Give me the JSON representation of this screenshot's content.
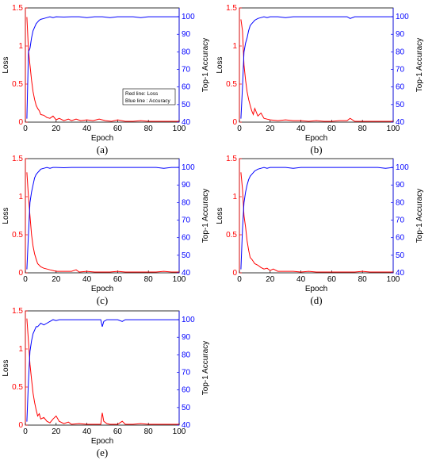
{
  "chart_data": [
    {
      "type": "line",
      "caption": "(a)",
      "xlabel": "Epoch",
      "ylabel_left": "Loss",
      "ylabel_right": "Top-1 Accuracy",
      "xlim": [
        0,
        100
      ],
      "ylim_left": [
        0,
        1.5
      ],
      "ylim_right": [
        40,
        105
      ],
      "x_ticks": [
        "0",
        "20",
        "40",
        "60",
        "80",
        "100"
      ],
      "y_left_ticks": [
        "0",
        "0.5",
        "1",
        "1.5"
      ],
      "y_right_ticks": [
        "40",
        "50",
        "60",
        "70",
        "80",
        "90",
        "100"
      ],
      "legend": [
        "Red line: Loss",
        "Blue line : Accuracy"
      ],
      "series": [
        {
          "axis": "left",
          "color": "#ff0000",
          "x": [
            1,
            2,
            3,
            4,
            5,
            6,
            7,
            8,
            9,
            10,
            12,
            14,
            16,
            18,
            20,
            22,
            25,
            28,
            30,
            33,
            36,
            40,
            44,
            48,
            52,
            56,
            60,
            65,
            70,
            75,
            80,
            85,
            90,
            95,
            100
          ],
          "values": [
            1.38,
            0.95,
            0.75,
            0.55,
            0.4,
            0.3,
            0.22,
            0.18,
            0.15,
            0.1,
            0.09,
            0.06,
            0.05,
            0.08,
            0.03,
            0.05,
            0.02,
            0.04,
            0.02,
            0.04,
            0.02,
            0.03,
            0.02,
            0.04,
            0.02,
            0.01,
            0.03,
            0.01,
            0.01,
            0.02,
            0.01,
            0.01,
            0.01,
            0.01,
            0.01
          ]
        },
        {
          "axis": "right",
          "color": "#0000ff",
          "x": [
            1,
            2,
            3,
            4,
            5,
            6,
            7,
            8,
            9,
            10,
            12,
            14,
            16,
            18,
            20,
            25,
            30,
            35,
            40,
            45,
            50,
            55,
            60,
            65,
            70,
            75,
            80,
            85,
            90,
            95,
            100
          ],
          "values": [
            42,
            80,
            82,
            88,
            92,
            94,
            96,
            97,
            98,
            98.5,
            99,
            99.5,
            100,
            99.5,
            100,
            99.8,
            100,
            100,
            99.5,
            100,
            100,
            99.5,
            100,
            100,
            100,
            99.5,
            100,
            100,
            100,
            100,
            100
          ]
        }
      ]
    },
    {
      "type": "line",
      "caption": "(b)",
      "xlabel": "Epoch",
      "ylabel_left": "Loss",
      "ylabel_right": "Top-1 Accuracy",
      "xlim": [
        0,
        100
      ],
      "ylim_left": [
        0,
        1.5
      ],
      "ylim_right": [
        40,
        105
      ],
      "x_ticks": [
        "0",
        "20",
        "40",
        "60",
        "80",
        "100"
      ],
      "y_left_ticks": [
        "0",
        "0.5",
        "1",
        "1.5"
      ],
      "y_right_ticks": [
        "40",
        "50",
        "60",
        "70",
        "80",
        "90",
        "100"
      ],
      "series": [
        {
          "axis": "left",
          "color": "#ff0000",
          "x": [
            1,
            2,
            3,
            4,
            5,
            6,
            7,
            8,
            9,
            10,
            12,
            14,
            16,
            18,
            20,
            25,
            30,
            35,
            40,
            45,
            50,
            55,
            60,
            65,
            70,
            72,
            75,
            80,
            85,
            90,
            95,
            100
          ],
          "values": [
            1.35,
            1.2,
            0.75,
            0.55,
            0.4,
            0.3,
            0.22,
            0.15,
            0.1,
            0.18,
            0.08,
            0.12,
            0.05,
            0.04,
            0.03,
            0.02,
            0.03,
            0.02,
            0.02,
            0.01,
            0.02,
            0.01,
            0.01,
            0.02,
            0.02,
            0.05,
            0.01,
            0.01,
            0.01,
            0.01,
            0.01,
            0.01
          ]
        },
        {
          "axis": "right",
          "color": "#0000ff",
          "x": [
            1,
            2,
            3,
            4,
            5,
            6,
            7,
            8,
            9,
            10,
            12,
            14,
            16,
            18,
            20,
            25,
            30,
            35,
            40,
            45,
            50,
            55,
            60,
            65,
            70,
            72,
            75,
            80,
            85,
            90,
            95,
            100
          ],
          "values": [
            42,
            60,
            80,
            85,
            88,
            92,
            95,
            96,
            97,
            98,
            99,
            99.5,
            100,
            99.5,
            100,
            100,
            99.5,
            100,
            100,
            100,
            100,
            100,
            100,
            100,
            100,
            99,
            100,
            100,
            100,
            100,
            100,
            100
          ]
        }
      ]
    },
    {
      "type": "line",
      "caption": "(c)",
      "xlabel": "Epoch",
      "ylabel_left": "Loss",
      "ylabel_right": "Top-1 Accuracy",
      "xlim": [
        0,
        100
      ],
      "ylim_left": [
        0,
        1.5
      ],
      "ylim_right": [
        40,
        105
      ],
      "x_ticks": [
        "0",
        "20",
        "40",
        "60",
        "80",
        "100"
      ],
      "y_left_ticks": [
        "0",
        "0.5",
        "1",
        "1.5"
      ],
      "y_right_ticks": [
        "40",
        "50",
        "60",
        "70",
        "80",
        "90",
        "100"
      ],
      "series": [
        {
          "axis": "left",
          "color": "#ff0000",
          "x": [
            1,
            2,
            3,
            4,
            5,
            6,
            7,
            8,
            9,
            10,
            12,
            14,
            16,
            18,
            20,
            25,
            30,
            33,
            35,
            40,
            45,
            50,
            55,
            60,
            65,
            70,
            75,
            80,
            85,
            90,
            95,
            100
          ],
          "values": [
            1.32,
            1.0,
            0.75,
            0.5,
            0.35,
            0.25,
            0.18,
            0.12,
            0.1,
            0.08,
            0.06,
            0.05,
            0.04,
            0.03,
            0.02,
            0.02,
            0.02,
            0.04,
            0.01,
            0.02,
            0.01,
            0.01,
            0.01,
            0.02,
            0.01,
            0.01,
            0.01,
            0.01,
            0.01,
            0.02,
            0.01,
            0.01
          ]
        },
        {
          "axis": "right",
          "color": "#0000ff",
          "x": [
            1,
            2,
            3,
            4,
            5,
            6,
            7,
            8,
            9,
            10,
            12,
            14,
            16,
            18,
            20,
            25,
            30,
            35,
            40,
            45,
            50,
            55,
            60,
            65,
            70,
            75,
            80,
            85,
            90,
            95,
            100
          ],
          "values": [
            42,
            62,
            80,
            86,
            90,
            94,
            96,
            97,
            98,
            99,
            99.5,
            100,
            99.5,
            100,
            100,
            99.8,
            100,
            100,
            100,
            100,
            100,
            100,
            100,
            100,
            100,
            100,
            100,
            100,
            99.5,
            100,
            100
          ]
        }
      ]
    },
    {
      "type": "line",
      "caption": "(d)",
      "xlabel": "Epoch",
      "ylabel_left": "Loss",
      "ylabel_right": "Top-1 Accuracy",
      "xlim": [
        0,
        100
      ],
      "ylim_left": [
        0,
        1.5
      ],
      "ylim_right": [
        40,
        105
      ],
      "x_ticks": [
        "0",
        "20",
        "40",
        "60",
        "80",
        "100"
      ],
      "y_left_ticks": [
        "0",
        "0.5",
        "1",
        "1.5"
      ],
      "y_right_ticks": [
        "40",
        "50",
        "60",
        "70",
        "80",
        "90",
        "100"
      ],
      "series": [
        {
          "axis": "left",
          "color": "#ff0000",
          "x": [
            1,
            2,
            3,
            4,
            5,
            6,
            7,
            8,
            9,
            10,
            12,
            14,
            16,
            18,
            20,
            22,
            25,
            30,
            35,
            40,
            45,
            50,
            55,
            60,
            65,
            70,
            75,
            80,
            85,
            90,
            95,
            100
          ],
          "values": [
            1.32,
            1.1,
            0.75,
            0.6,
            0.42,
            0.3,
            0.2,
            0.18,
            0.15,
            0.12,
            0.1,
            0.07,
            0.05,
            0.06,
            0.03,
            0.05,
            0.02,
            0.02,
            0.02,
            0.01,
            0.02,
            0.01,
            0.01,
            0.01,
            0.01,
            0.01,
            0.01,
            0.02,
            0.01,
            0.01,
            0.01,
            0.01
          ]
        },
        {
          "axis": "right",
          "color": "#0000ff",
          "x": [
            1,
            2,
            3,
            4,
            5,
            6,
            7,
            8,
            9,
            10,
            12,
            14,
            16,
            18,
            20,
            25,
            30,
            35,
            40,
            45,
            50,
            55,
            60,
            65,
            70,
            75,
            80,
            85,
            90,
            95,
            100
          ],
          "values": [
            42,
            65,
            80,
            86,
            90,
            93,
            95,
            96,
            97,
            98,
            99,
            99.5,
            100,
            99.5,
            100,
            100,
            100,
            99.5,
            100,
            100,
            100,
            100,
            100,
            100,
            100,
            100,
            100,
            100,
            100,
            99.5,
            100
          ]
        }
      ]
    },
    {
      "type": "line",
      "caption": "(e)",
      "xlabel": "Epoch",
      "ylabel_left": "Loss",
      "ylabel_right": "Top-1 Accuracy",
      "xlim": [
        0,
        100
      ],
      "ylim_left": [
        0,
        1.5
      ],
      "ylim_right": [
        40,
        105
      ],
      "x_ticks": [
        "0",
        "20",
        "40",
        "60",
        "80",
        "100"
      ],
      "y_left_ticks": [
        "0",
        "0.5",
        "1",
        "1.5"
      ],
      "y_right_ticks": [
        "40",
        "50",
        "60",
        "70",
        "80",
        "90",
        "100"
      ],
      "series": [
        {
          "axis": "left",
          "color": "#ff0000",
          "x": [
            1,
            2,
            3,
            4,
            5,
            6,
            7,
            8,
            9,
            10,
            12,
            14,
            16,
            18,
            20,
            22,
            25,
            28,
            30,
            35,
            40,
            45,
            49,
            50,
            51,
            53,
            55,
            60,
            63,
            65,
            70,
            75,
            80,
            85,
            90,
            95,
            100
          ],
          "values": [
            1.4,
            1.1,
            0.8,
            0.6,
            0.42,
            0.3,
            0.2,
            0.12,
            0.15,
            0.08,
            0.1,
            0.05,
            0.03,
            0.08,
            0.12,
            0.05,
            0.02,
            0.04,
            0.01,
            0.02,
            0.01,
            0.01,
            0.01,
            0.16,
            0.05,
            0.02,
            0.01,
            0.01,
            0.05,
            0.01,
            0.01,
            0.02,
            0.01,
            0.01,
            0.01,
            0.01,
            0.01
          ]
        },
        {
          "axis": "right",
          "color": "#0000ff",
          "x": [
            1,
            2,
            3,
            4,
            5,
            6,
            7,
            8,
            9,
            10,
            12,
            14,
            16,
            18,
            20,
            22,
            25,
            30,
            35,
            40,
            45,
            49,
            50,
            51,
            53,
            55,
            60,
            63,
            65,
            70,
            75,
            80,
            85,
            90,
            95,
            100
          ],
          "values": [
            42,
            65,
            82,
            88,
            92,
            94,
            96,
            96,
            97,
            98,
            97,
            98,
            99,
            100,
            99.5,
            100,
            100,
            100,
            100,
            100,
            100,
            100,
            96,
            99,
            100,
            100,
            100,
            99,
            100,
            100,
            100,
            100,
            100,
            100,
            100,
            100
          ]
        }
      ]
    }
  ]
}
